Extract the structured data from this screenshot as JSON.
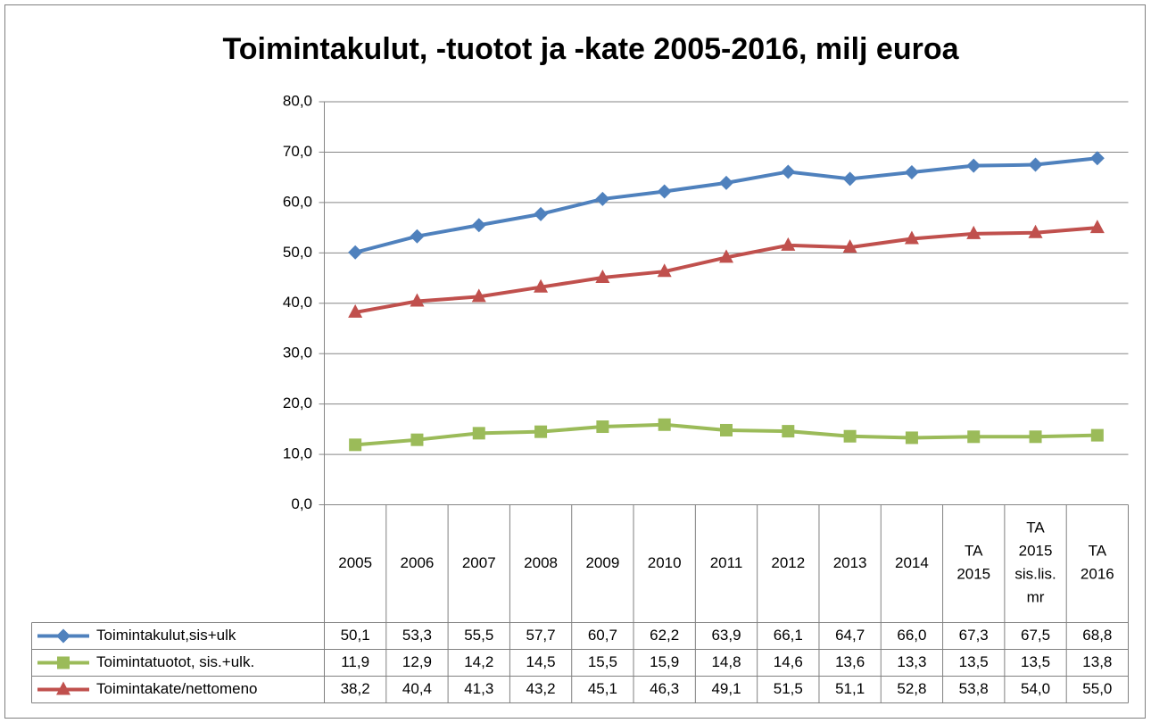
{
  "chart_data": {
    "type": "line",
    "title": "Toimintakulut, -tuotot ja -kate 2005-2016, milj euroa",
    "categories": [
      "2005",
      "2006",
      "2007",
      "2008",
      "2009",
      "2010",
      "2011",
      "2012",
      "2013",
      "2014",
      "TA 2015",
      "TA 2015 sis.lis. mr",
      "TA 2016"
    ],
    "series": [
      {
        "name": "Toimintakulut,sis+ulk",
        "color": "#4f81bd",
        "marker": "diamond",
        "values": [
          50.1,
          53.3,
          55.5,
          57.7,
          60.7,
          62.2,
          63.9,
          66.1,
          64.7,
          66.0,
          67.3,
          67.5,
          68.8
        ],
        "value_labels": [
          "50,1",
          "53,3",
          "55,5",
          "57,7",
          "60,7",
          "62,2",
          "63,9",
          "66,1",
          "64,7",
          "66,0",
          "67,3",
          "67,5",
          "68,8"
        ]
      },
      {
        "name": "Toimintatuotot, sis.+ulk.",
        "color": "#9bbb59",
        "marker": "square",
        "values": [
          11.9,
          12.9,
          14.2,
          14.5,
          15.5,
          15.9,
          14.8,
          14.6,
          13.6,
          13.3,
          13.5,
          13.5,
          13.8
        ],
        "value_labels": [
          "11,9",
          "12,9",
          "14,2",
          "14,5",
          "15,5",
          "15,9",
          "14,8",
          "14,6",
          "13,6",
          "13,3",
          "13,5",
          "13,5",
          "13,8"
        ]
      },
      {
        "name": "Toimintakate/nettomeno",
        "color": "#c0504d",
        "marker": "triangle",
        "values": [
          38.2,
          40.4,
          41.3,
          43.2,
          45.1,
          46.3,
          49.1,
          51.5,
          51.1,
          52.8,
          53.8,
          54.0,
          55.0
        ],
        "value_labels": [
          "38,2",
          "40,4",
          "41,3",
          "43,2",
          "45,1",
          "46,3",
          "49,1",
          "51,5",
          "51,1",
          "52,8",
          "53,8",
          "54,0",
          "55,0"
        ]
      }
    ],
    "ylim": [
      0,
      80
    ],
    "yticks": [
      {
        "value": 0,
        "label": "0,0"
      },
      {
        "value": 10,
        "label": "10,0"
      },
      {
        "value": 20,
        "label": "20,0"
      },
      {
        "value": 30,
        "label": "30,0"
      },
      {
        "value": 40,
        "label": "40,0"
      },
      {
        "value": 50,
        "label": "50,0"
      },
      {
        "value": 60,
        "label": "60,0"
      },
      {
        "value": 70,
        "label": "70,0"
      },
      {
        "value": 80,
        "label": "80,0"
      }
    ],
    "grid": true
  }
}
